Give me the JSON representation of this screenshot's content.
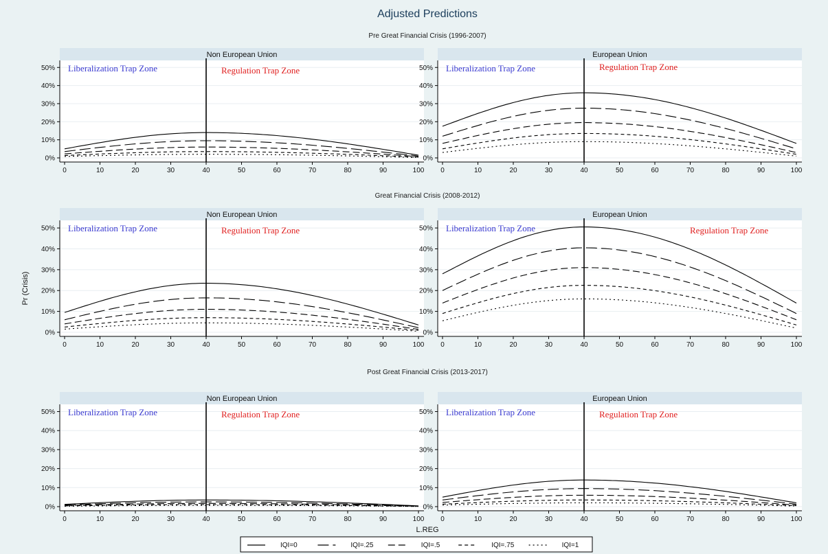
{
  "figure": {
    "title": "Adjusted Predictions",
    "ylabel": "Pr (Crisis)",
    "xlabel": "L.REG",
    "colors": {
      "background": "#eaf2f3",
      "strip": "#d9e6ee",
      "liberalization": "#3a3ad0",
      "regulation": "#e02020",
      "line": "#000000"
    }
  },
  "chart_data": {
    "type": "line",
    "x_ticks": [
      0,
      10,
      20,
      30,
      40,
      50,
      60,
      70,
      80,
      90,
      100
    ],
    "y_ticks": [
      "0%",
      "10%",
      "20%",
      "30%",
      "40%",
      "50%"
    ],
    "xlim": [
      0,
      100
    ],
    "ylim": [
      0,
      0.52
    ],
    "threshold_x": 40,
    "legend": {
      "placement": "bottom",
      "entries": [
        {
          "label": "IQI=0",
          "dash": "solid"
        },
        {
          "label": "IQI=.25",
          "dash": "longdash"
        },
        {
          "label": "IQI=.5",
          "dash": "dash"
        },
        {
          "label": "IQI=.75",
          "dash": "shortdash"
        },
        {
          "label": "IQI=1",
          "dash": "dot"
        }
      ]
    },
    "periods": [
      {
        "title": "Pre Great Financial Crisis (1996-2007)",
        "panels": [
          {
            "strip": "Non European Union",
            "zone_left": "Liberalization Trap Zone",
            "zone_right": "Regulation Trap Zone",
            "series": [
              {
                "name": "IQI=0",
                "peak": 0.14,
                "start": 0.05,
                "end": 0.015
              },
              {
                "name": "IQI=.25",
                "peak": 0.095,
                "start": 0.035,
                "end": 0.01
              },
              {
                "name": "IQI=.5",
                "peak": 0.06,
                "start": 0.022,
                "end": 0.007
              },
              {
                "name": "IQI=.75",
                "peak": 0.035,
                "start": 0.013,
                "end": 0.004
              },
              {
                "name": "IQI=1",
                "peak": 0.02,
                "start": 0.008,
                "end": 0.002
              }
            ]
          },
          {
            "strip": "European Union",
            "zone_left": "Liberalization Trap Zone",
            "zone_right": "Regulation Trap Zone",
            "series": [
              {
                "name": "IQI=0",
                "peak": 0.36,
                "start": 0.175,
                "end": 0.08
              },
              {
                "name": "IQI=.25",
                "peak": 0.275,
                "start": 0.12,
                "end": 0.05
              },
              {
                "name": "IQI=.5",
                "peak": 0.195,
                "start": 0.08,
                "end": 0.03
              },
              {
                "name": "IQI=.75",
                "peak": 0.135,
                "start": 0.05,
                "end": 0.02
              },
              {
                "name": "IQI=1",
                "peak": 0.09,
                "start": 0.03,
                "end": 0.01
              }
            ]
          }
        ]
      },
      {
        "title": "Great Financial Crisis (2008-2012)",
        "panels": [
          {
            "strip": "Non European Union",
            "zone_left": "Liberalization Trap Zone",
            "zone_right": "Regulation Trap Zone",
            "series": [
              {
                "name": "IQI=0",
                "peak": 0.235,
                "start": 0.095,
                "end": 0.035
              },
              {
                "name": "IQI=.25",
                "peak": 0.165,
                "start": 0.06,
                "end": 0.022
              },
              {
                "name": "IQI=.5",
                "peak": 0.11,
                "start": 0.04,
                "end": 0.014
              },
              {
                "name": "IQI=.75",
                "peak": 0.07,
                "start": 0.025,
                "end": 0.009
              },
              {
                "name": "IQI=1",
                "peak": 0.045,
                "start": 0.015,
                "end": 0.005
              }
            ]
          },
          {
            "strip": "European Union",
            "zone_left": "Liberalization Trap Zone",
            "zone_right": "Regulation Trap Zone",
            "series": [
              {
                "name": "IQI=0",
                "peak": 0.505,
                "start": 0.28,
                "end": 0.14
              },
              {
                "name": "IQI=.25",
                "peak": 0.405,
                "start": 0.2,
                "end": 0.09
              },
              {
                "name": "IQI=.5",
                "peak": 0.31,
                "start": 0.14,
                "end": 0.06
              },
              {
                "name": "IQI=.75",
                "peak": 0.225,
                "start": 0.09,
                "end": 0.035
              },
              {
                "name": "IQI=1",
                "peak": 0.16,
                "start": 0.055,
                "end": 0.02
              }
            ]
          }
        ]
      },
      {
        "title": "Post Great Financial Crisis (2013-2017)",
        "panels": [
          {
            "strip": "Non European Union",
            "zone_left": "Liberalization Trap Zone",
            "zone_right": "Regulation Trap Zone",
            "series": [
              {
                "name": "IQI=0",
                "peak": 0.035,
                "start": 0.012,
                "end": 0.004
              },
              {
                "name": "IQI=.25",
                "peak": 0.025,
                "start": 0.009,
                "end": 0.003
              },
              {
                "name": "IQI=.5",
                "peak": 0.017,
                "start": 0.006,
                "end": 0.002
              },
              {
                "name": "IQI=.75",
                "peak": 0.011,
                "start": 0.004,
                "end": 0.001
              },
              {
                "name": "IQI=1",
                "peak": 0.007,
                "start": 0.002,
                "end": 0.001
              }
            ]
          },
          {
            "strip": "European Union",
            "zone_left": "Liberalization Trap Zone",
            "zone_right": "Regulation Trap Zone",
            "series": [
              {
                "name": "IQI=0",
                "peak": 0.14,
                "start": 0.05,
                "end": 0.02
              },
              {
                "name": "IQI=.25",
                "peak": 0.095,
                "start": 0.035,
                "end": 0.013
              },
              {
                "name": "IQI=.5",
                "peak": 0.06,
                "start": 0.022,
                "end": 0.008
              },
              {
                "name": "IQI=.75",
                "peak": 0.035,
                "start": 0.013,
                "end": 0.005
              },
              {
                "name": "IQI=1",
                "peak": 0.02,
                "start": 0.008,
                "end": 0.003
              }
            ]
          }
        ]
      }
    ]
  }
}
